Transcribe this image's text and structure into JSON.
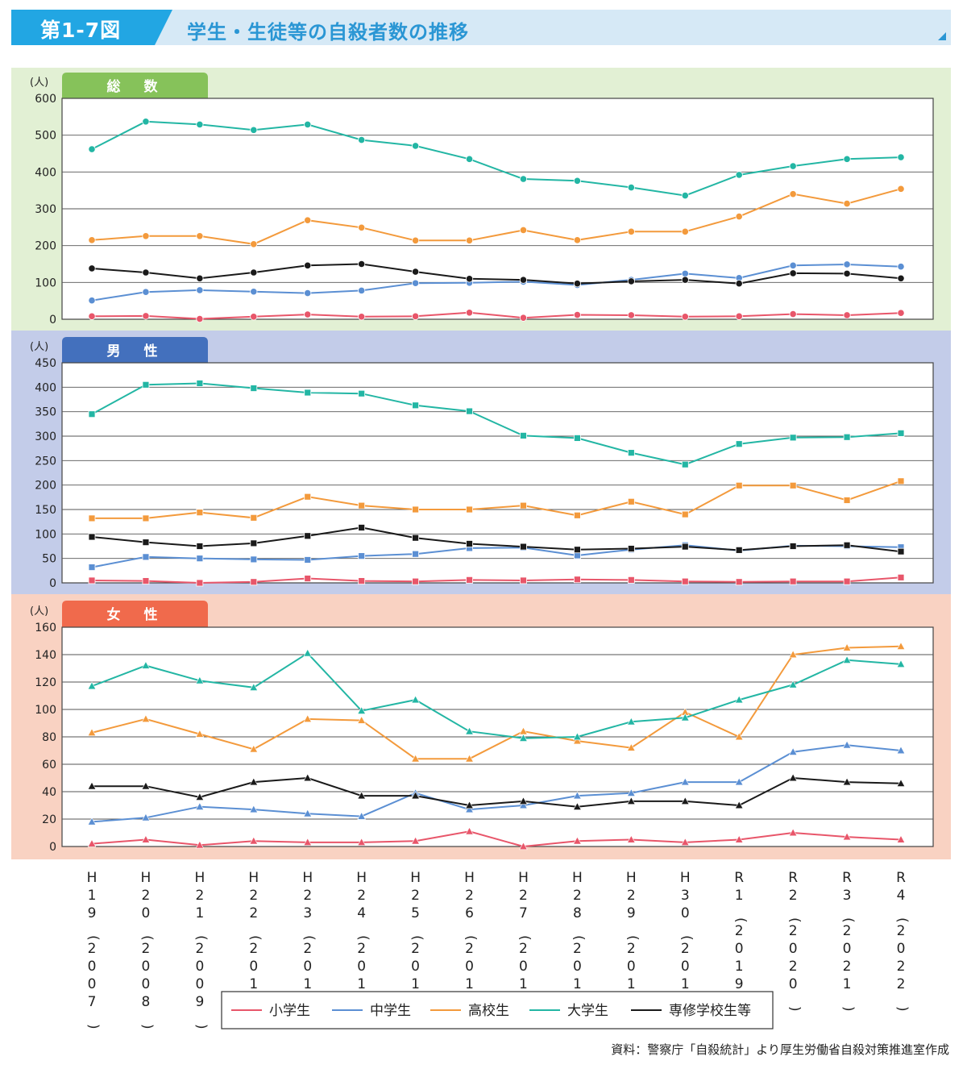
{
  "header": {
    "figure_number": "第1-7図",
    "title": "学生・生徒等の自殺者数の推移"
  },
  "colors": {
    "header_badge": "#22a6e3",
    "panel_total_bg": "#e2f0d4",
    "panel_total_tab": "#86c25a",
    "panel_male_bg": "#c3cce9",
    "panel_male_tab": "#4370bd",
    "panel_female_bg": "#f9d2c2",
    "panel_female_tab": "#f06a4c"
  },
  "source_note": "資料：警察庁「自殺統計」より厚生労働省自殺対策推進室作成",
  "chart_data": {
    "type": "line",
    "categories": [
      "H19(2007)",
      "H20(2008)",
      "H21(2009)",
      "H22(2010)",
      "H23(2011)",
      "H24(2012)",
      "H25(2013)",
      "H26(2014)",
      "H27(2015)",
      "H28(2016)",
      "H29(2017)",
      "H30(2018)",
      "R1(2019)",
      "R2(2020)",
      "R3(2021)",
      "R4(2022)"
    ],
    "legend": [
      {
        "name": "小学生",
        "color": "#e8566a"
      },
      {
        "name": "中学生",
        "color": "#5b8fd3"
      },
      {
        "name": "高校生",
        "color": "#f39a3c"
      },
      {
        "name": "大学生",
        "color": "#23b6a4"
      },
      {
        "name": "専修学校生等",
        "color": "#1a1a1a"
      }
    ],
    "legend_placement": "bottom",
    "panels": [
      {
        "label": "総　数",
        "unit": "(人)",
        "ylim": [
          0,
          600
        ],
        "yticks": [
          0,
          100,
          200,
          300,
          400,
          500,
          600
        ],
        "marker": "circle",
        "grid": true,
        "series": [
          {
            "name": "小学生",
            "values": [
              8,
              9,
              1,
              7,
              13,
              7,
              8,
              18,
              4,
              12,
              11,
              7,
              8,
              14,
              11,
              17
            ]
          },
          {
            "name": "中学生",
            "values": [
              51,
              74,
              79,
              75,
              71,
              78,
              98,
              99,
              102,
              93,
              107,
              124,
              112,
              146,
              149,
              143
            ]
          },
          {
            "name": "高校生",
            "values": [
              215,
              226,
              226,
              204,
              269,
              249,
              214,
              214,
              242,
              215,
              238,
              238,
              279,
              340,
              314,
              354
            ]
          },
          {
            "name": "大学生",
            "values": [
              462,
              537,
              529,
              514,
              529,
              487,
              471,
              435,
              381,
              376,
              358,
              336,
              392,
              416,
              435,
              440
            ]
          },
          {
            "name": "専修学校生等",
            "values": [
              138,
              127,
              111,
              127,
              146,
              150,
              129,
              110,
              107,
              97,
              103,
              107,
              97,
              125,
              124,
              111
            ]
          }
        ]
      },
      {
        "label": "男　性",
        "unit": "(人)",
        "ylim": [
          0,
          450
        ],
        "yticks": [
          0,
          50,
          100,
          150,
          200,
          250,
          300,
          350,
          400,
          450
        ],
        "marker": "square",
        "grid": true,
        "series": [
          {
            "name": "小学生",
            "values": [
              5,
              4,
              0,
              2,
              9,
              4,
              3,
              6,
              5,
              7,
              6,
              3,
              2,
              3,
              3,
              11
            ]
          },
          {
            "name": "中学生",
            "values": [
              32,
              53,
              50,
              48,
              47,
              55,
              59,
              71,
              72,
              56,
              68,
              77,
              66,
              76,
              75,
              73
            ]
          },
          {
            "name": "高校生",
            "values": [
              132,
              132,
              144,
              133,
              176,
              158,
              150,
              150,
              158,
              138,
              166,
              140,
              199,
              199,
              169,
              208
            ]
          },
          {
            "name": "大学生",
            "values": [
              345,
              405,
              408,
              398,
              389,
              387,
              363,
              351,
              301,
              296,
              266,
              242,
              284,
              297,
              298,
              306
            ]
          },
          {
            "name": "専修学校生等",
            "values": [
              94,
              83,
              75,
              81,
              96,
              113,
              92,
              80,
              74,
              68,
              70,
              74,
              67,
              75,
              77,
              64
            ]
          }
        ]
      },
      {
        "label": "女　性",
        "unit": "(人)",
        "ylim": [
          0,
          160
        ],
        "yticks": [
          0,
          20,
          40,
          60,
          80,
          100,
          120,
          140,
          160
        ],
        "marker": "triangle",
        "grid": true,
        "series": [
          {
            "name": "小学生",
            "values": [
              2,
              5,
              1,
              4,
              3,
              3,
              4,
              11,
              0,
              4,
              5,
              3,
              5,
              10,
              7,
              5
            ]
          },
          {
            "name": "中学生",
            "values": [
              18,
              21,
              29,
              27,
              24,
              22,
              39,
              27,
              30,
              37,
              39,
              47,
              47,
              69,
              74,
              70
            ]
          },
          {
            "name": "高校生",
            "values": [
              83,
              93,
              82,
              71,
              93,
              92,
              64,
              64,
              84,
              77,
              72,
              98,
              80,
              140,
              145,
              146
            ]
          },
          {
            "name": "大学生",
            "values": [
              117,
              132,
              121,
              116,
              141,
              99,
              107,
              84,
              79,
              80,
              91,
              94,
              107,
              118,
              136,
              133
            ]
          },
          {
            "name": "専修学校生等",
            "values": [
              44,
              44,
              36,
              47,
              50,
              37,
              37,
              30,
              33,
              29,
              33,
              33,
              30,
              50,
              47,
              46
            ]
          }
        ]
      }
    ]
  }
}
